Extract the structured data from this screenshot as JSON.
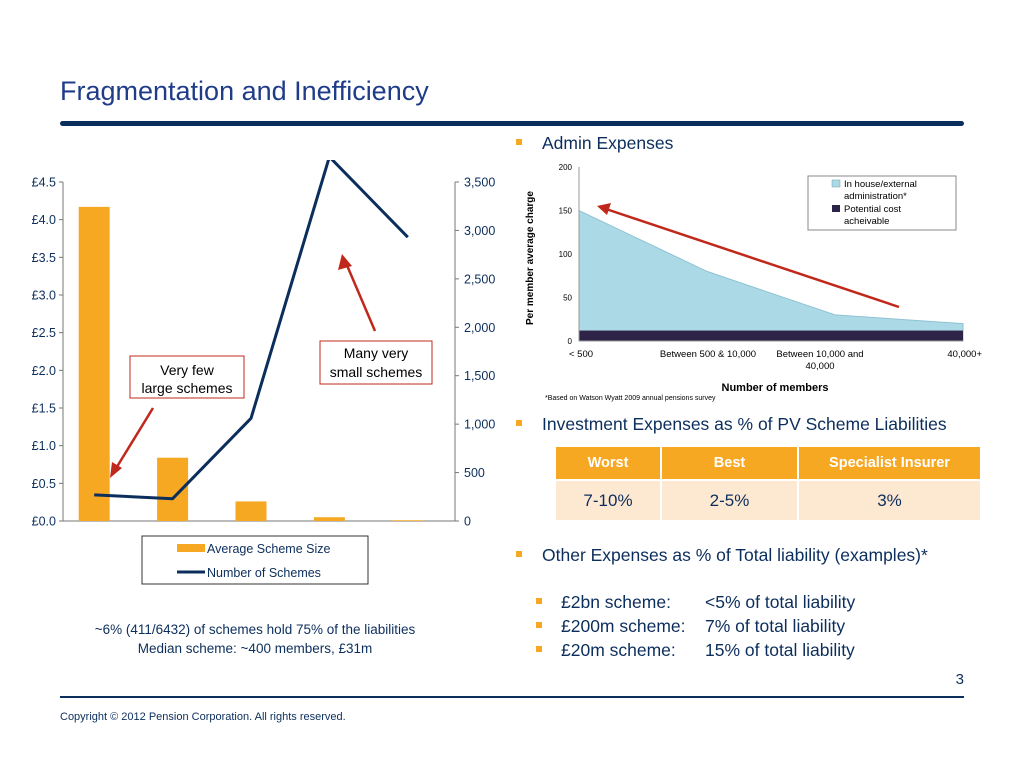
{
  "slide": {
    "title": "Fragmentation and Inefficiency",
    "page_number": "3",
    "copyright": "Copyright © 2012 Pension Corporation. All rights reserved."
  },
  "colors": {
    "navy": "#0c2e5c",
    "orange": "#f7a823",
    "area_fill": "#acd9e6",
    "cost_band": "#2e2448",
    "arrow_red": "#c0281c"
  },
  "left_callouts": {
    "few_large": "Very few large schemes",
    "many_small": "Many very small schemes"
  },
  "left_note": {
    "line1": "~6% (411/6432) of schemes hold 75% of the liabilities",
    "line2": "Median scheme: ~400 members, £31m"
  },
  "bullets": {
    "admin": "Admin Expenses",
    "investment": "Investment Expenses as % of PV Scheme Liabilities",
    "other": "Other Expenses as % of Total liability (examples)*"
  },
  "investment_table": {
    "headers": [
      "Worst",
      "Best",
      "Specialist Insurer"
    ],
    "row": [
      "7-10%",
      "2-5%",
      "3%"
    ]
  },
  "other_examples": [
    {
      "scheme": "£2bn scheme:",
      "value": "<5% of total liability"
    },
    {
      "scheme": "£200m scheme:",
      "value": "7% of total liability"
    },
    {
      "scheme": "£20m scheme:",
      "value": "15% of total liability"
    }
  ],
  "chart_data": [
    {
      "type": "bar",
      "categories": [
        "",
        "",
        "",
        "",
        ""
      ],
      "series": [
        {
          "name": "Average Scheme Size",
          "values": [
            4.17,
            0.84,
            0.26,
            0.05,
            0.01
          ],
          "axis": "left"
        },
        {
          "name": "Number of Schemes",
          "type": "line",
          "values": [
            270,
            230,
            1060,
            3760,
            2930
          ],
          "axis": "right"
        }
      ],
      "y_left": {
        "ticks": [
          "£0.0",
          "£0.5",
          "£1.0",
          "£1.5",
          "£2.0",
          "£2.5",
          "£3.0",
          "£3.5",
          "£4.0",
          "£4.5"
        ],
        "ylim": [
          0,
          4.5
        ]
      },
      "y_right": {
        "ticks": [
          "0",
          "500",
          "1,000",
          "1,500",
          "2,000",
          "2,500",
          "3,000",
          "3,500"
        ],
        "ylim": [
          0,
          3500
        ]
      },
      "legend_placement": "bottom"
    },
    {
      "type": "area",
      "ylabel": "Per member average charge",
      "xlabel": "Number  of members",
      "x_ticks": [
        "< 500",
        "Between 500 & 10,000",
        "Between 10,000 and 40,000",
        "40,000+"
      ],
      "y_ticks": [
        "0",
        "50",
        "100",
        "150",
        "200"
      ],
      "ylim": [
        0,
        200
      ],
      "series": [
        {
          "name": "In house/external administration*",
          "x": [
            0,
            1,
            2,
            3
          ],
          "values": [
            150,
            80,
            30,
            20
          ]
        },
        {
          "name": "Potential cost acheivable",
          "x": [
            0,
            1,
            2,
            3
          ],
          "values": [
            12,
            12,
            12,
            12
          ]
        }
      ],
      "footnote": "*Based on Watson Wyatt 2009 annual pensions survey",
      "legend_placement": "top-right"
    }
  ]
}
